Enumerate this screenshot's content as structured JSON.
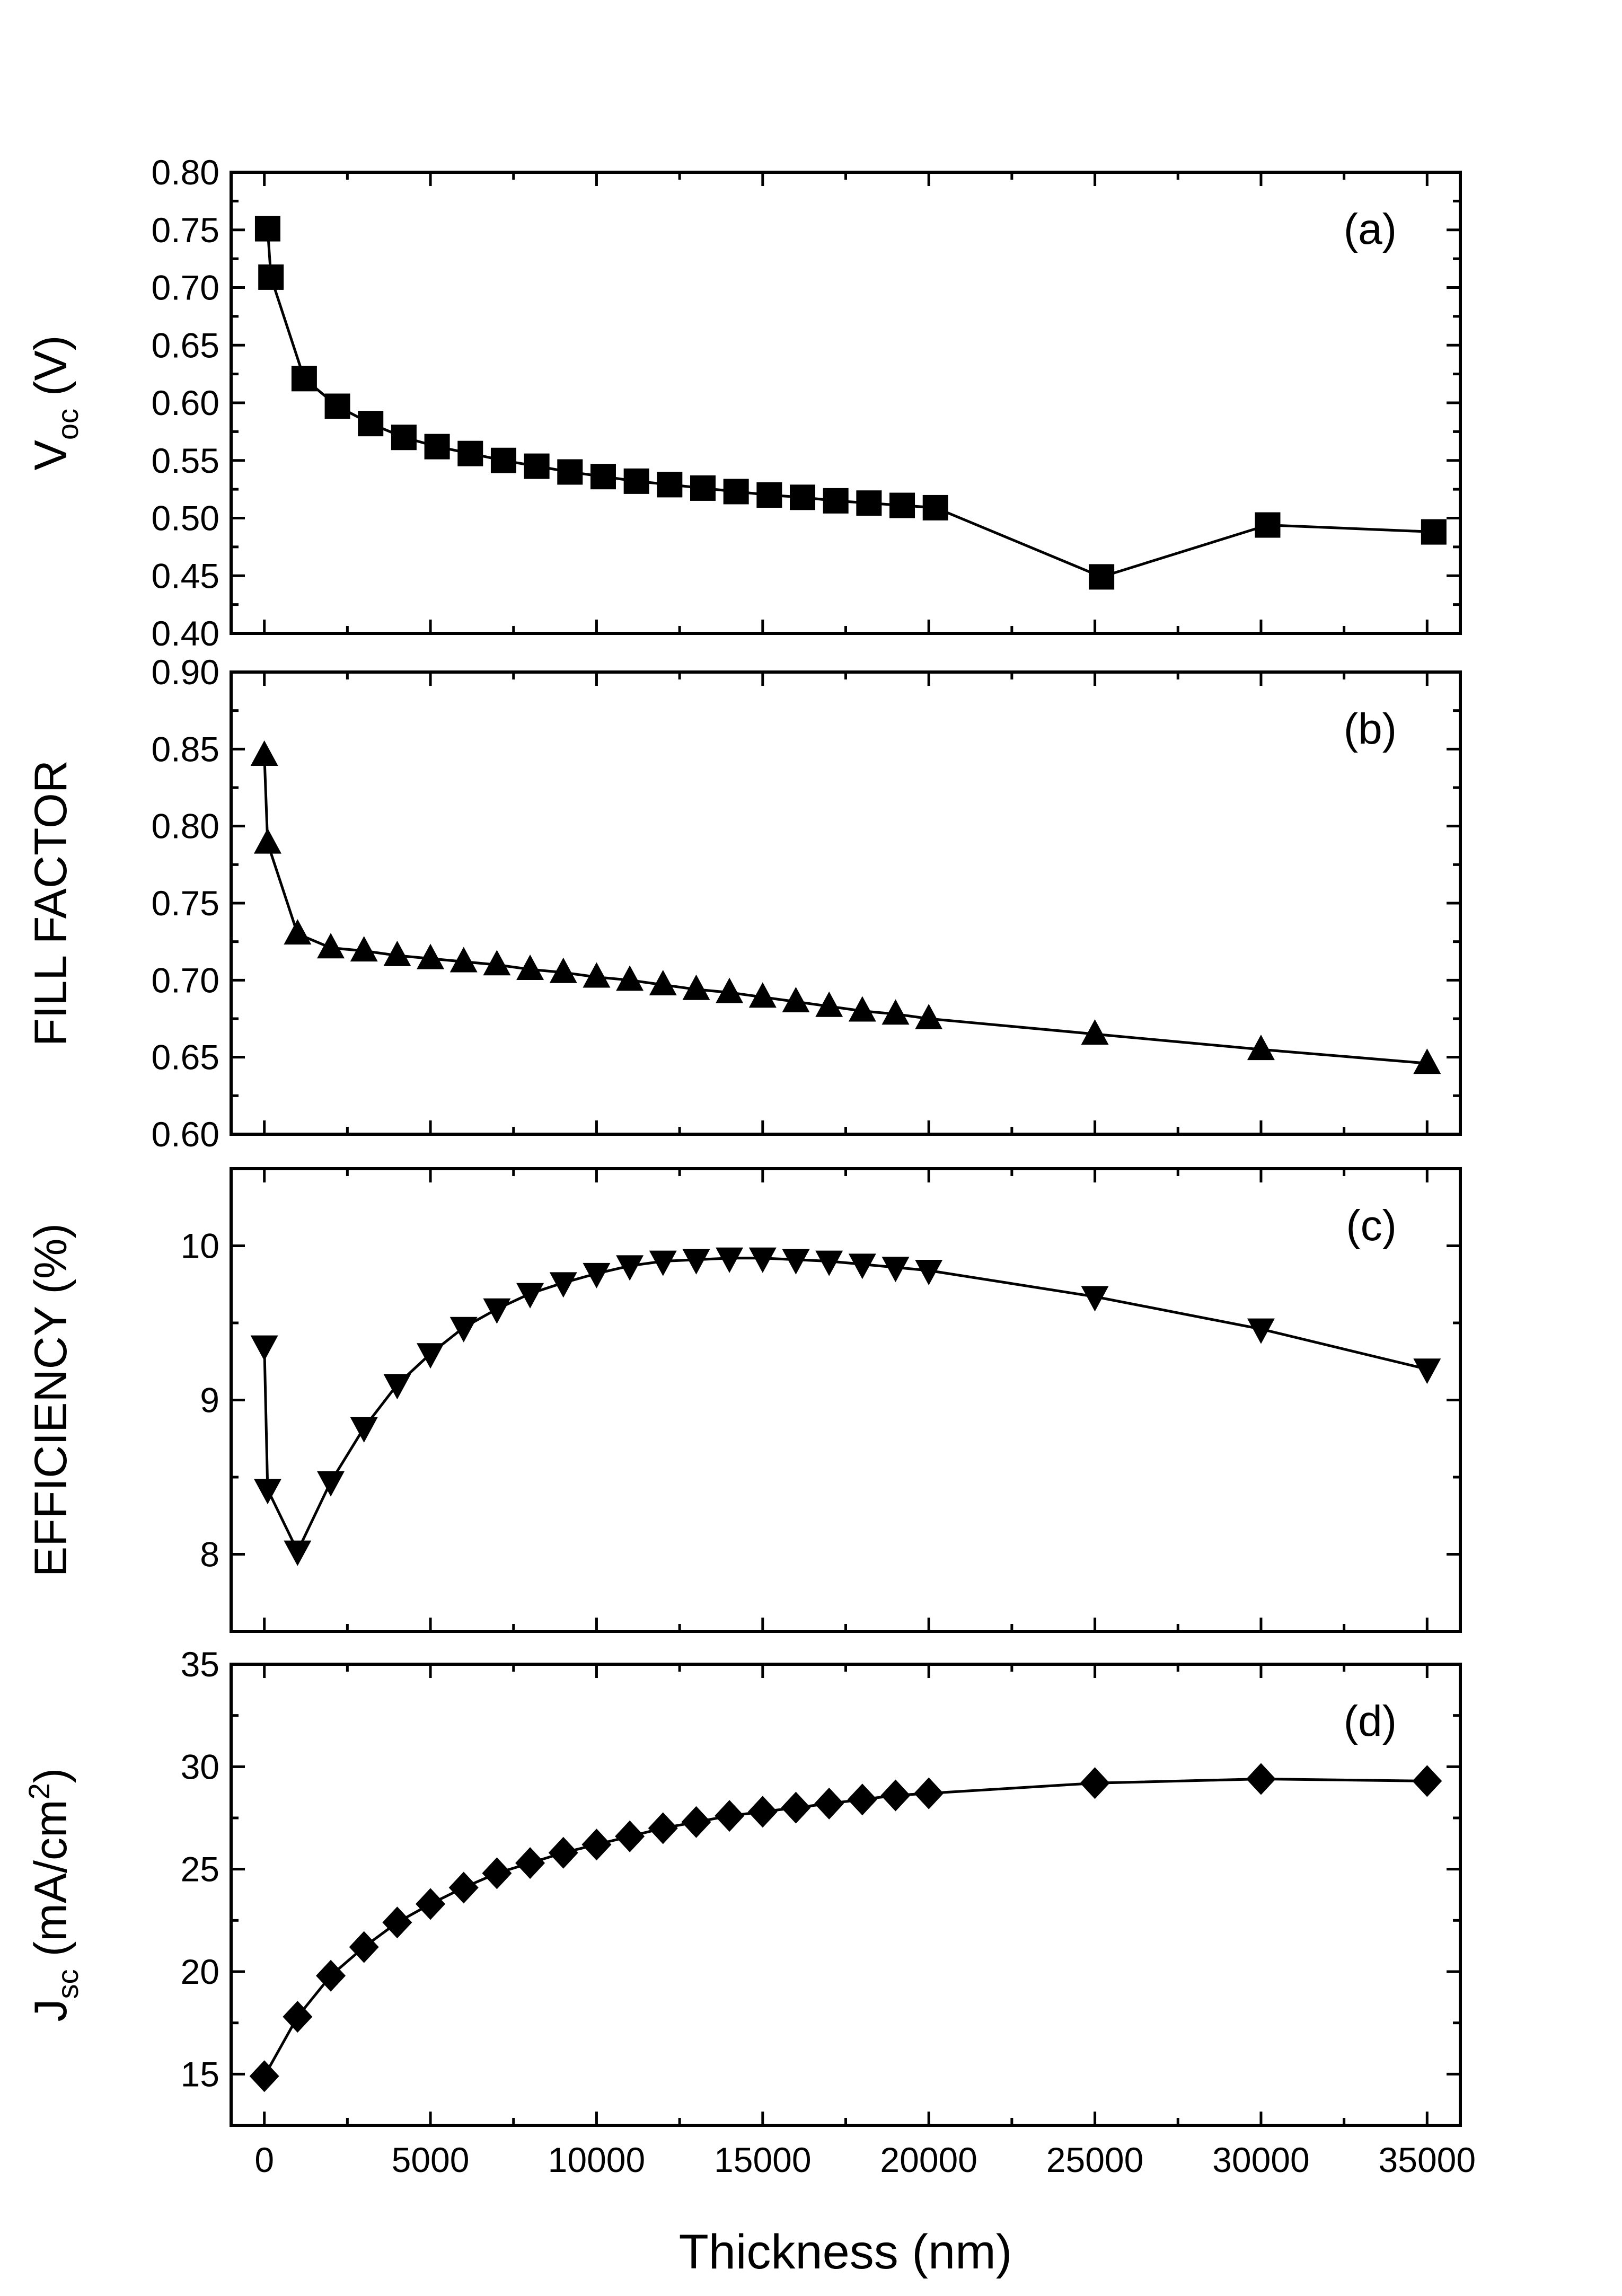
{
  "chart_data": [
    {
      "type": "line",
      "id": "a",
      "panel_label": "(a)",
      "ylabel": "V",
      "ylabel_sub": "oc",
      "ylabel_unit": " (V)",
      "marker": "square",
      "ylim": [
        0.4,
        0.8
      ],
      "yticks": [
        "0.40",
        "0.45",
        "0.50",
        "0.55",
        "0.60",
        "0.65",
        "0.70",
        "0.75",
        "0.80"
      ],
      "x": [
        100,
        200,
        1200,
        2200,
        3200,
        4200,
        5200,
        6200,
        7200,
        8200,
        9200,
        10200,
        11200,
        12200,
        13200,
        14200,
        15200,
        16200,
        17200,
        18200,
        19200,
        20200,
        25200,
        30200,
        35200
      ],
      "y": [
        0.751,
        0.709,
        0.621,
        0.597,
        0.582,
        0.57,
        0.562,
        0.556,
        0.55,
        0.545,
        0.54,
        0.536,
        0.532,
        0.529,
        0.526,
        0.523,
        0.52,
        0.518,
        0.515,
        0.513,
        0.511,
        0.509,
        0.449,
        0.494,
        0.488
      ]
    },
    {
      "type": "line",
      "id": "b",
      "panel_label": "(b)",
      "ylabel": "FILL FACTOR",
      "ylabel_sub": "",
      "ylabel_unit": "",
      "marker": "triangle-up",
      "ylim": [
        0.6,
        0.9
      ],
      "yticks": [
        "0.60",
        "0.65",
        "0.70",
        "0.75",
        "0.80",
        "0.85",
        "0.90"
      ],
      "x": [
        0,
        100,
        1000,
        2000,
        3000,
        4000,
        5000,
        6000,
        7000,
        8000,
        9000,
        10000,
        11000,
        12000,
        13000,
        14000,
        15000,
        16000,
        17000,
        18000,
        19000,
        20000,
        25000,
        30000,
        35000
      ],
      "y": [
        0.846,
        0.789,
        0.73,
        0.721,
        0.719,
        0.716,
        0.714,
        0.712,
        0.71,
        0.707,
        0.705,
        0.702,
        0.7,
        0.697,
        0.694,
        0.692,
        0.689,
        0.686,
        0.683,
        0.68,
        0.678,
        0.675,
        0.665,
        0.655,
        0.646
      ]
    },
    {
      "type": "line",
      "id": "c",
      "panel_label": "(c)",
      "ylabel": "EFFICIENCY (%)",
      "ylabel_sub": "",
      "ylabel_unit": "",
      "marker": "triangle-down",
      "ylim": [
        7.5,
        10.5
      ],
      "yticks": [
        "8",
        "9",
        "10"
      ],
      "ytick_values": [
        8,
        9,
        10
      ],
      "x": [
        0,
        100,
        1000,
        2000,
        3000,
        4000,
        5000,
        6000,
        7000,
        8000,
        9000,
        10000,
        11000,
        12000,
        13000,
        14000,
        15000,
        16000,
        17000,
        18000,
        19000,
        20000,
        25000,
        30000,
        35000
      ],
      "y": [
        9.35,
        8.42,
        8.02,
        8.47,
        8.82,
        9.1,
        9.3,
        9.47,
        9.59,
        9.69,
        9.76,
        9.82,
        9.87,
        9.9,
        9.91,
        9.92,
        9.92,
        9.91,
        9.9,
        9.88,
        9.86,
        9.84,
        9.67,
        9.46,
        9.2
      ]
    },
    {
      "type": "line",
      "id": "d",
      "panel_label": "(d)",
      "ylabel": "J",
      "ylabel_sub": "sc",
      "ylabel_unit": " (mA/cm",
      "ylabel_sup": "2",
      "ylabel_close": ")",
      "marker": "diamond",
      "ylim": [
        12.5,
        35
      ],
      "yticks": [
        "15",
        "20",
        "25",
        "30",
        "35"
      ],
      "ytick_values": [
        15,
        20,
        25,
        30,
        35
      ],
      "x": [
        0,
        1000,
        2000,
        3000,
        4000,
        5000,
        6000,
        7000,
        8000,
        9000,
        10000,
        11000,
        12000,
        13000,
        14000,
        15000,
        16000,
        17000,
        18000,
        19000,
        20000,
        25000,
        30000,
        35000
      ],
      "y": [
        14.9,
        17.8,
        19.8,
        21.2,
        22.4,
        23.3,
        24.1,
        24.8,
        25.3,
        25.8,
        26.2,
        26.6,
        27.0,
        27.3,
        27.6,
        27.8,
        28.0,
        28.2,
        28.4,
        28.6,
        28.7,
        29.2,
        29.4,
        29.3
      ]
    }
  ],
  "x_axis": {
    "xlabel": "Thickness  (nm)",
    "xlim": [
      -1000,
      36000
    ],
    "xticks": [
      "0",
      "5000",
      "10000",
      "15000",
      "20000",
      "25000",
      "30000",
      "35000"
    ],
    "xtick_values": [
      0,
      5000,
      10000,
      15000,
      20000,
      25000,
      30000,
      35000
    ]
  }
}
